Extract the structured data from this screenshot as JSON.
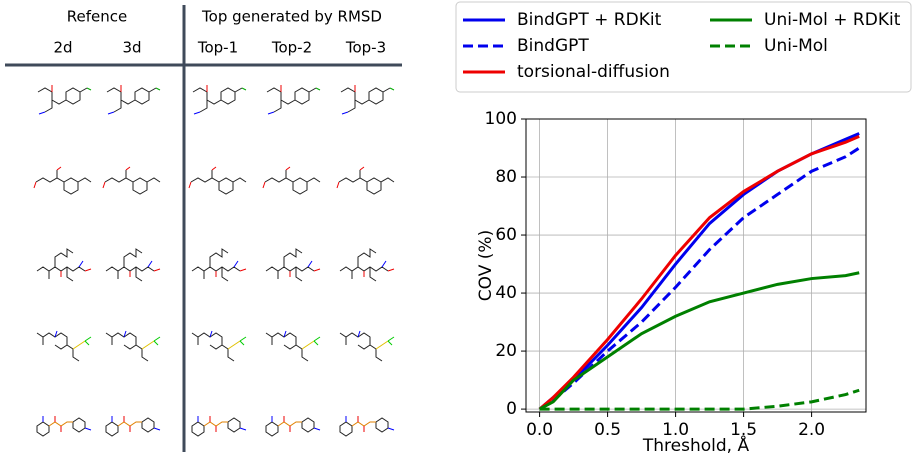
{
  "table": {
    "group_headers": [
      "Refence",
      "Top generated by RMSD"
    ],
    "columns": [
      "2d",
      "3d",
      "Top-1",
      "Top-2",
      "Top-3"
    ]
  },
  "chart_data": {
    "type": "line",
    "xlabel": "Threshold, Å",
    "ylabel": "COV (%)",
    "x": [
      0,
      0.1,
      0.25,
      0.5,
      0.75,
      1.0,
      1.25,
      1.5,
      1.75,
      2.0,
      2.25,
      2.35
    ],
    "series": [
      {
        "name": "BindGPT + RDKit",
        "color": "#0000ee",
        "linestyle": "solid",
        "values": [
          0,
          4,
          10,
          22,
          35,
          50,
          64,
          74,
          82,
          88,
          93,
          95
        ]
      },
      {
        "name": "BindGPT",
        "color": "#0000ee",
        "linestyle": "dashed",
        "values": [
          0,
          3,
          9,
          20,
          30,
          42,
          55,
          66,
          74,
          82,
          87,
          90
        ]
      },
      {
        "name": "torsional-diffusion",
        "color": "#ee0000",
        "linestyle": "solid",
        "values": [
          0,
          4,
          11,
          24,
          38,
          53,
          66,
          75,
          82,
          88,
          92,
          94
        ]
      },
      {
        "name": "Uni-Mol + RDKit",
        "color": "#008000",
        "linestyle": "solid",
        "values": [
          0,
          2.5,
          10,
          18,
          26,
          32,
          37,
          40,
          43,
          45,
          46,
          47
        ]
      },
      {
        "name": "Uni-Mol",
        "color": "#008000",
        "linestyle": "dashed",
        "values": [
          0,
          0,
          0,
          0,
          0,
          0,
          0,
          0,
          1,
          2.5,
          5,
          6.5
        ]
      }
    ],
    "xlim": [
      -0.1,
      2.4
    ],
    "ylim": [
      -1,
      100
    ],
    "xticks": [
      {
        "value": 0,
        "label": "0.0"
      },
      0.5,
      {
        "value": 1,
        "label": "1.0"
      },
      1.5,
      {
        "value": 2,
        "label": "2.0"
      }
    ],
    "yticks": [
      0,
      20,
      40,
      60,
      80,
      100
    ],
    "grid": true,
    "legend_position": "top"
  }
}
